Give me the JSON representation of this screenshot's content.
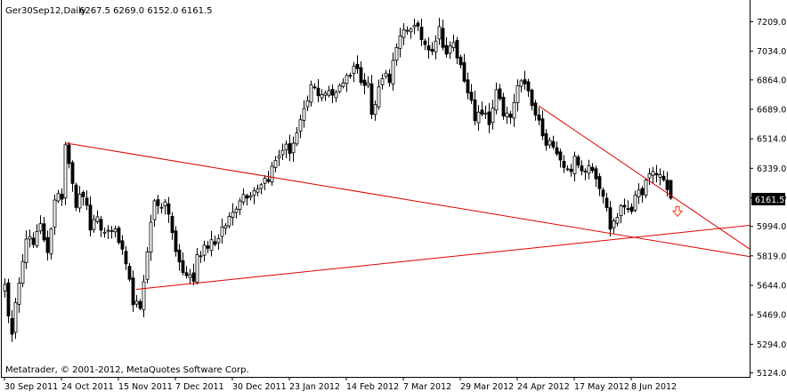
{
  "header": {
    "symbol": "Ger30Sep12,Daily",
    "ohlc": "6267.5 6269.0 6152.0 6161.5"
  },
  "copyright": "Metatrader, © 2001-2012, MetaQuotes Software Corp.",
  "price_badge": "6161.5",
  "colors": {
    "background": "#ffffff",
    "axis": "#000000",
    "bull_body": "#ffffff",
    "bear_body": "#000000",
    "candle_line": "#000000",
    "trendline": "#dd0000",
    "arrow": "#ff3300",
    "badge_bg": "#000000",
    "badge_text": "#ffffff"
  },
  "chart_data": {
    "type": "candlestick",
    "ylim": [
      5124.0,
      7296.0
    ],
    "y_ticks": [
      "7209.0",
      "7034.0",
      "6864.0",
      "6689.0",
      "6514.0",
      "6339.0",
      "6164.0",
      "5994.0",
      "5819.0",
      "5644.0",
      "5469.0",
      "5294.0",
      "5124.0"
    ],
    "x_ticks": [
      {
        "label": "30 Sep 2011",
        "index": 0
      },
      {
        "label": "24 Oct 2011",
        "index": 16
      },
      {
        "label": "15 Nov 2011",
        "index": 32
      },
      {
        "label": "7 Dec 2011",
        "index": 48
      },
      {
        "label": "30 Dec 2011",
        "index": 64
      },
      {
        "label": "23 Jan 2012",
        "index": 80
      },
      {
        "label": "14 Feb 2012",
        "index": 96
      },
      {
        "label": "7 Mar 2012",
        "index": 112
      },
      {
        "label": "29 Mar 2012",
        "index": 128
      },
      {
        "label": "24 Apr 2012",
        "index": 144
      },
      {
        "label": "17 May 2012",
        "index": 160
      },
      {
        "label": "8 Jun 2012",
        "index": 176
      }
    ],
    "close_path": [
      [
        0,
        5650
      ],
      [
        2,
        5330
      ],
      [
        4,
        5690
      ],
      [
        6,
        5950
      ],
      [
        8,
        5880
      ],
      [
        10,
        5990
      ],
      [
        12,
        5860
      ],
      [
        14,
        6130
      ],
      [
        16,
        6180
      ],
      [
        17,
        6490
      ],
      [
        18,
        6400
      ],
      [
        20,
        6130
      ],
      [
        22,
        6190
      ],
      [
        24,
        5990
      ],
      [
        26,
        6020
      ],
      [
        28,
        5950
      ],
      [
        30,
        5990
      ],
      [
        32,
        5910
      ],
      [
        34,
        5740
      ],
      [
        36,
        5560
      ],
      [
        38,
        5480
      ],
      [
        40,
        5870
      ],
      [
        42,
        6140
      ],
      [
        44,
        6130
      ],
      [
        46,
        6080
      ],
      [
        48,
        5830
      ],
      [
        50,
        5720
      ],
      [
        52,
        5700
      ],
      [
        53,
        5680
      ],
      [
        54,
        5810
      ],
      [
        56,
        5880
      ],
      [
        58,
        5910
      ],
      [
        60,
        5910
      ],
      [
        62,
        6010
      ],
      [
        64,
        6080
      ],
      [
        66,
        6170
      ],
      [
        68,
        6190
      ],
      [
        70,
        6210
      ],
      [
        72,
        6260
      ],
      [
        74,
        6290
      ],
      [
        76,
        6380
      ],
      [
        78,
        6460
      ],
      [
        80,
        6450
      ],
      [
        82,
        6540
      ],
      [
        84,
        6660
      ],
      [
        86,
        6820
      ],
      [
        88,
        6790
      ],
      [
        90,
        6790
      ],
      [
        92,
        6770
      ],
      [
        94,
        6840
      ],
      [
        96,
        6880
      ],
      [
        98,
        6950
      ],
      [
        100,
        6880
      ],
      [
        102,
        6850
      ],
      [
        103,
        6650
      ],
      [
        104,
        6720
      ],
      [
        106,
        6900
      ],
      [
        108,
        6880
      ],
      [
        110,
        7040
      ],
      [
        112,
        7150
      ],
      [
        114,
        7190
      ],
      [
        116,
        7150
      ],
      [
        118,
        7080
      ],
      [
        120,
        7060
      ],
      [
        122,
        7160
      ],
      [
        124,
        7020
      ],
      [
        126,
        7070
      ],
      [
        128,
        6940
      ],
      [
        130,
        6820
      ],
      [
        132,
        6610
      ],
      [
        134,
        6680
      ],
      [
        136,
        6600
      ],
      [
        138,
        6820
      ],
      [
        140,
        6640
      ],
      [
        142,
        6640
      ],
      [
        144,
        6800
      ],
      [
        146,
        6860
      ],
      [
        148,
        6700
      ],
      [
        150,
        6610
      ],
      [
        152,
        6460
      ],
      [
        154,
        6500
      ],
      [
        156,
        6400
      ],
      [
        158,
        6320
      ],
      [
        160,
        6380
      ],
      [
        162,
        6320
      ],
      [
        164,
        6380
      ],
      [
        166,
        6300
      ],
      [
        168,
        6190
      ],
      [
        170,
        5990
      ],
      [
        172,
        6060
      ],
      [
        174,
        6120
      ],
      [
        176,
        6110
      ],
      [
        178,
        6180
      ],
      [
        180,
        6250
      ],
      [
        182,
        6310
      ],
      [
        184,
        6300
      ],
      [
        186,
        6230
      ],
      [
        187,
        6161.5
      ]
    ],
    "trendlines": [
      {
        "from": [
          17,
          6490
        ],
        "to": [
          214,
          5815
        ]
      },
      {
        "from": [
          37,
          5620
        ],
        "to": [
          214,
          6000
        ]
      },
      {
        "from": [
          150,
          6710
        ],
        "to": [
          214,
          5860
        ]
      }
    ],
    "arrow": {
      "index": 189,
      "value": 6080,
      "direction": "down"
    }
  }
}
